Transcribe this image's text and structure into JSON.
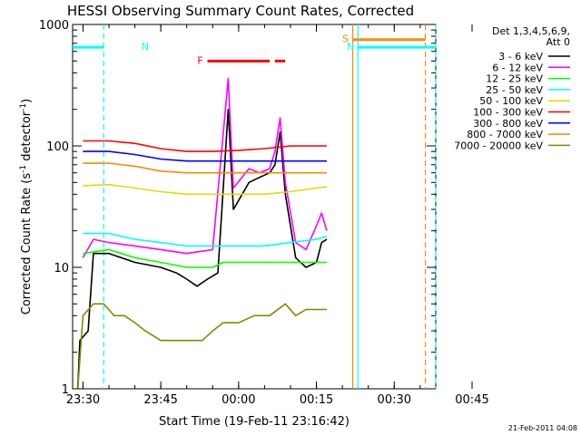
{
  "chart_data": {
    "type": "line",
    "title": "HESSI Observing Summary Count Rates, Corrected",
    "xlabel": "Start Time (19-Feb-11 23:16:42)",
    "ylabel_main": "Corrected Count Rate (s",
    "ylabel_sup1": "-1",
    "ylabel_mid": " detector",
    "ylabel_sup2": "-1",
    "ylabel_end": ")",
    "y_scale": "log",
    "ylim": [
      1,
      1000
    ],
    "xlim_minutes": [
      -17,
      53
    ],
    "x_ticks": [
      {
        "m": -15,
        "label": "23:30"
      },
      {
        "m": 0,
        "label": "23:45"
      },
      {
        "m": 15,
        "label": "00:00"
      },
      {
        "m": 30,
        "label": "00:15"
      },
      {
        "m": 45,
        "label": "00:30"
      },
      {
        "m": 60,
        "label": "00:45"
      }
    ],
    "y_ticks": [
      {
        "v": 1,
        "label": "1"
      },
      {
        "v": 10,
        "label": "10"
      },
      {
        "v": 100,
        "label": "100"
      },
      {
        "v": 1000,
        "label": "1000"
      }
    ],
    "legend_header": [
      "Det 1,3,4,5,6,9,",
      "Att 0"
    ],
    "legend_placement": "right",
    "timestamp": "21-Feb-2011 04:08",
    "series": [
      {
        "name": "3 - 6 keV",
        "color": "#000000",
        "points": [
          [
            -16,
            1
          ],
          [
            -15.6,
            2.5
          ],
          [
            -14,
            3
          ],
          [
            -13,
            13
          ],
          [
            -10,
            13
          ],
          [
            -5,
            11
          ],
          [
            0,
            10
          ],
          [
            3,
            9
          ],
          [
            5,
            8
          ],
          [
            7,
            7
          ],
          [
            9,
            8
          ],
          [
            11,
            9
          ],
          [
            13,
            200
          ],
          [
            14,
            30
          ],
          [
            17,
            50
          ],
          [
            19,
            55
          ],
          [
            21,
            60
          ],
          [
            22,
            70
          ],
          [
            23,
            130
          ],
          [
            24,
            40
          ],
          [
            26,
            12
          ],
          [
            28,
            10
          ],
          [
            30,
            11
          ],
          [
            31,
            16
          ],
          [
            32,
            17
          ]
        ]
      },
      {
        "name": "6 - 12 keV",
        "color": "#ff00ff",
        "points": [
          [
            -15,
            12
          ],
          [
            -13,
            17
          ],
          [
            -10,
            16
          ],
          [
            -5,
            15
          ],
          [
            0,
            14
          ],
          [
            5,
            13
          ],
          [
            10,
            14
          ],
          [
            13,
            360
          ],
          [
            14,
            45
          ],
          [
            17,
            65
          ],
          [
            19,
            60
          ],
          [
            21,
            65
          ],
          [
            22,
            90
          ],
          [
            23,
            170
          ],
          [
            24,
            50
          ],
          [
            26,
            16
          ],
          [
            28,
            14
          ],
          [
            30,
            22
          ],
          [
            31,
            28
          ],
          [
            32,
            20
          ]
        ]
      },
      {
        "name": "12 - 25 keV",
        "color": "#00ff00",
        "points": [
          [
            -15,
            13
          ],
          [
            -10,
            14
          ],
          [
            -5,
            12
          ],
          [
            0,
            11
          ],
          [
            5,
            10
          ],
          [
            8,
            10
          ],
          [
            10,
            10
          ],
          [
            12,
            11
          ],
          [
            15,
            11
          ],
          [
            20,
            11
          ],
          [
            25,
            11
          ],
          [
            30,
            11
          ],
          [
            32,
            11
          ]
        ]
      },
      {
        "name": "25 - 50 keV",
        "color": "#00ffff",
        "points": [
          [
            -15,
            19
          ],
          [
            -10,
            19
          ],
          [
            -5,
            17
          ],
          [
            0,
            16
          ],
          [
            5,
            15
          ],
          [
            10,
            15
          ],
          [
            15,
            15
          ],
          [
            20,
            15
          ],
          [
            25,
            16
          ],
          [
            30,
            17
          ],
          [
            32,
            18
          ]
        ]
      },
      {
        "name": "50 - 100 keV",
        "color": "#dddd00",
        "points": [
          [
            -15,
            47
          ],
          [
            -10,
            48
          ],
          [
            -5,
            45
          ],
          [
            0,
            42
          ],
          [
            5,
            40
          ],
          [
            10,
            40
          ],
          [
            15,
            40
          ],
          [
            20,
            40
          ],
          [
            25,
            42
          ],
          [
            30,
            45
          ],
          [
            32,
            46
          ]
        ]
      },
      {
        "name": "100 - 300 keV",
        "color": "#ff0000",
        "points": [
          [
            -15,
            110
          ],
          [
            -10,
            110
          ],
          [
            -5,
            105
          ],
          [
            0,
            95
          ],
          [
            5,
            90
          ],
          [
            10,
            90
          ],
          [
            15,
            92
          ],
          [
            20,
            95
          ],
          [
            25,
            100
          ],
          [
            30,
            100
          ],
          [
            32,
            100
          ]
        ]
      },
      {
        "name": "300 - 800 keV",
        "color": "#0000ff",
        "points": [
          [
            -15,
            90
          ],
          [
            -10,
            90
          ],
          [
            -5,
            85
          ],
          [
            0,
            78
          ],
          [
            5,
            75
          ],
          [
            10,
            75
          ],
          [
            15,
            75
          ],
          [
            20,
            75
          ],
          [
            25,
            75
          ],
          [
            30,
            75
          ],
          [
            32,
            75
          ]
        ]
      },
      {
        "name": "800 - 7000 keV",
        "color": "#ff8800",
        "points": [
          [
            -15,
            72
          ],
          [
            -10,
            72
          ],
          [
            -5,
            68
          ],
          [
            0,
            62
          ],
          [
            5,
            60
          ],
          [
            10,
            60
          ],
          [
            15,
            60
          ],
          [
            20,
            60
          ],
          [
            25,
            60
          ],
          [
            30,
            60
          ],
          [
            32,
            60
          ]
        ]
      },
      {
        "name": "7000 - 20000 keV",
        "color": "#888800",
        "points": [
          [
            -16,
            1
          ],
          [
            -15,
            4
          ],
          [
            -13,
            5
          ],
          [
            -11,
            5
          ],
          [
            -9,
            4
          ],
          [
            -7,
            4
          ],
          [
            -5,
            3.5
          ],
          [
            -3,
            3
          ],
          [
            0,
            2.5
          ],
          [
            3,
            2.5
          ],
          [
            5,
            2.5
          ],
          [
            8,
            2.5
          ],
          [
            10,
            3
          ],
          [
            12,
            3.5
          ],
          [
            15,
            3.5
          ],
          [
            18,
            4
          ],
          [
            21,
            4
          ],
          [
            24,
            5
          ],
          [
            26,
            4
          ],
          [
            28,
            4.5
          ],
          [
            30,
            4.5
          ],
          [
            32,
            4.5
          ]
        ]
      }
    ],
    "flags": [
      {
        "label": "N",
        "color": "#00ffff",
        "level": 650,
        "start": -17,
        "end": -11
      },
      {
        "label": "N",
        "color": "#00ffff",
        "level": 650,
        "start": 38,
        "end": 53
      },
      {
        "label": "F",
        "color": "#ff0000",
        "level": 500,
        "start": 9,
        "end": 21
      },
      {
        "label": "F",
        "color": "#ff0000",
        "level": 500,
        "start": 22,
        "end": 24
      },
      {
        "label": "S",
        "color": "#ff8800",
        "level": 750,
        "start": 37,
        "end": 51
      }
    ],
    "vertical_markers": [
      {
        "m": -11,
        "color": "#00ffff",
        "style": "dashed"
      },
      {
        "m": 37,
        "color": "#ff8800",
        "style": "solid"
      },
      {
        "m": 38,
        "color": "#00ffff",
        "style": "solid"
      },
      {
        "m": 51,
        "color": "#ff8800",
        "style": "dashed"
      },
      {
        "m": 53,
        "color": "#00ffff",
        "style": "dashed"
      }
    ],
    "grid": false
  }
}
